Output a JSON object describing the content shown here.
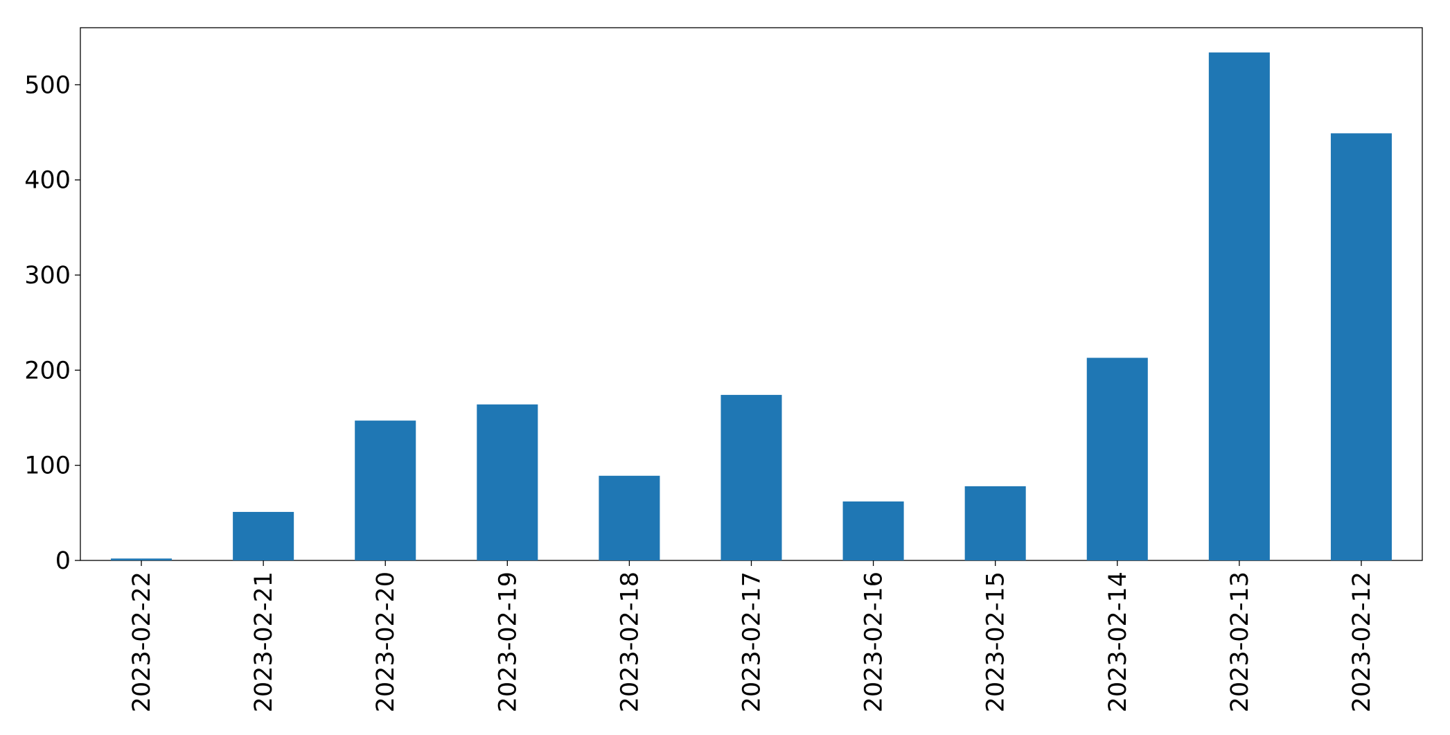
{
  "chart_data": {
    "type": "bar",
    "categories": [
      "2023-02-22",
      "2023-02-21",
      "2023-02-20",
      "2023-02-19",
      "2023-02-18",
      "2023-02-17",
      "2023-02-16",
      "2023-02-15",
      "2023-02-14",
      "2023-02-13",
      "2023-02-12"
    ],
    "values": [
      2,
      51,
      147,
      164,
      89,
      174,
      62,
      78,
      213,
      534,
      449
    ],
    "color": "#1f77b4",
    "ylim": [
      0,
      560
    ],
    "yticks": [
      0,
      100,
      200,
      300,
      400,
      500
    ],
    "grid": false
  }
}
